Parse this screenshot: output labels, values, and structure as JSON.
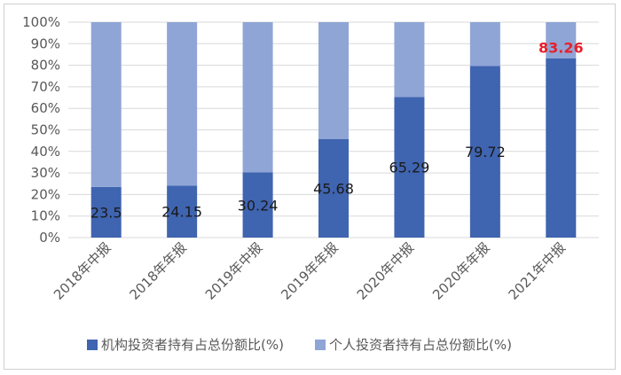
{
  "chart_data": {
    "type": "bar",
    "stacked": true,
    "categories": [
      "2018年中报",
      "2018年年报",
      "2019年中报",
      "2019年年报",
      "2020年中报",
      "2020年年报",
      "2021年中报"
    ],
    "series": [
      {
        "name": "机构投资者持有占总份额比(%)",
        "values": [
          23.5,
          24.15,
          30.24,
          45.68,
          65.29,
          79.72,
          83.26
        ],
        "color": "#3F64B0",
        "labels": [
          "23.5",
          "24.15",
          "30.24",
          "45.68",
          "65.29",
          "79.72",
          "83.26"
        ]
      },
      {
        "name": "个人投资者持有占总份额比(%)",
        "values": [
          76.5,
          75.85,
          69.76,
          54.32,
          34.71,
          20.28,
          16.74
        ],
        "color": "#8FA5D6"
      }
    ],
    "highlight_label_color": "#E8202A",
    "highlight_index": 6,
    "ylim": [
      0,
      100
    ],
    "yticks": [
      "0%",
      "10%",
      "20%",
      "30%",
      "40%",
      "50%",
      "60%",
      "70%",
      "80%",
      "90%",
      "100%"
    ],
    "grid": true,
    "legend_position": "bottom"
  }
}
